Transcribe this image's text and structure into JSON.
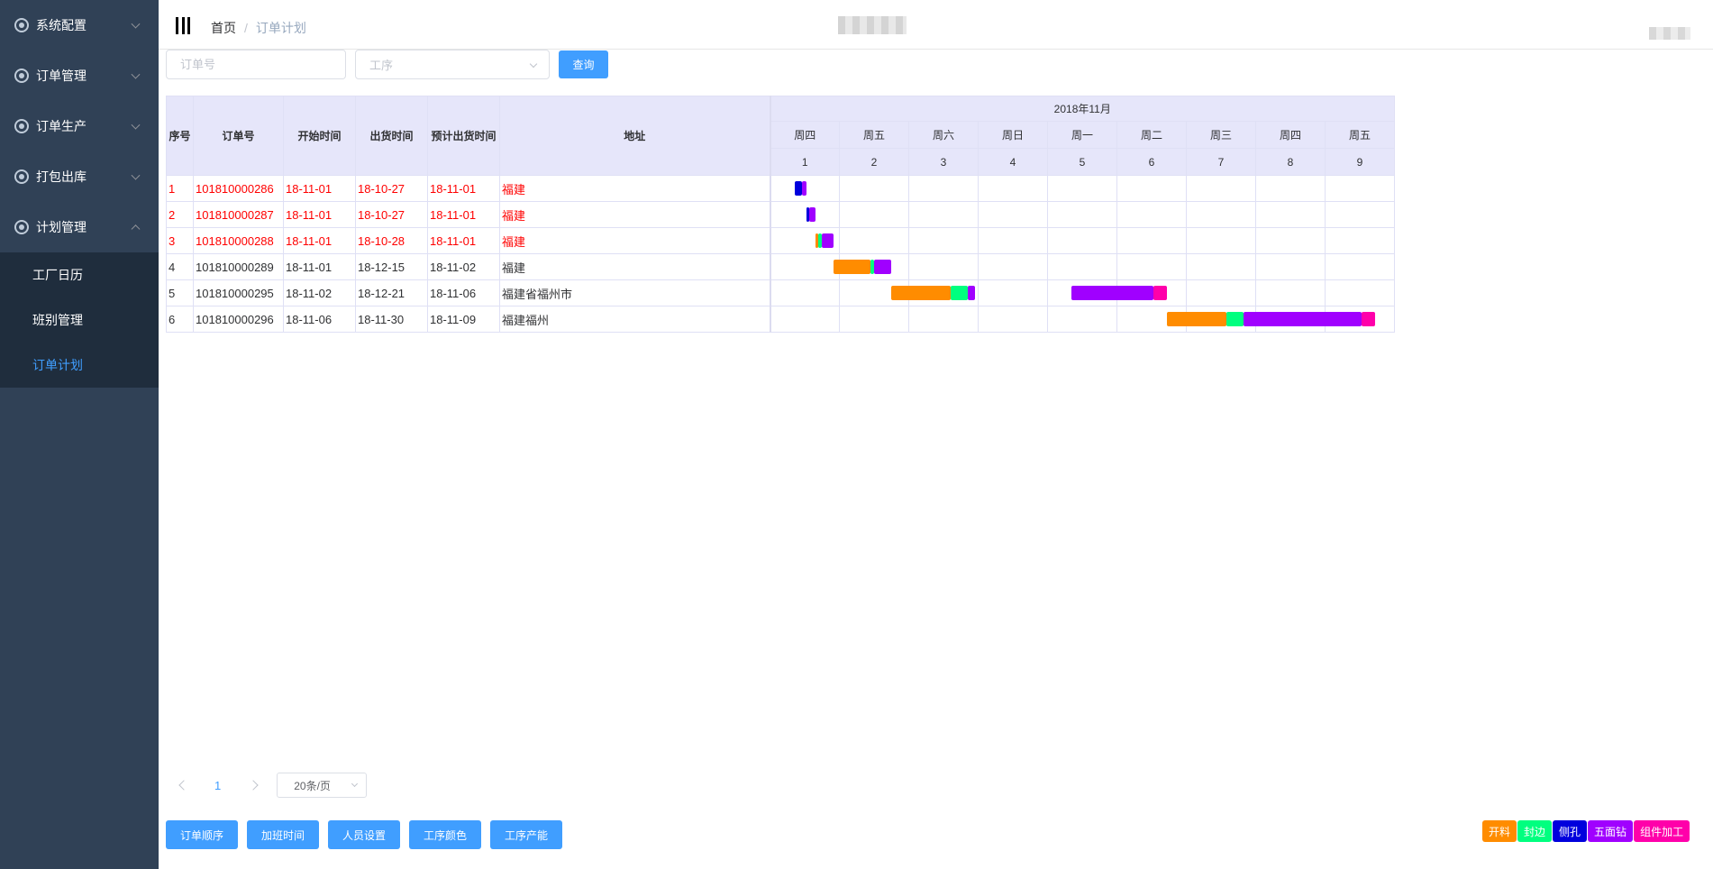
{
  "sidebar": {
    "menus": [
      {
        "label": "系统配置",
        "icon": "gear-icon",
        "expanded": false
      },
      {
        "label": "订单管理",
        "icon": "gear-icon",
        "expanded": false
      },
      {
        "label": "订单生产",
        "icon": "gear-icon",
        "expanded": false
      },
      {
        "label": "打包出库",
        "icon": "gear-icon",
        "expanded": false
      },
      {
        "label": "计划管理",
        "icon": "gear-icon",
        "expanded": true
      }
    ],
    "submenu": [
      {
        "label": "工厂日历",
        "active": false
      },
      {
        "label": "班别管理",
        "active": false
      },
      {
        "label": "订单计划",
        "active": true
      }
    ]
  },
  "header": {
    "breadcrumb": {
      "home": "首页",
      "separator": "/",
      "current": "订单计划"
    }
  },
  "filters": {
    "order_no_placeholder": "订单号",
    "process_placeholder": "工序",
    "query_label": "查询"
  },
  "table": {
    "columns": [
      "序号",
      "订单号",
      "开始时间",
      "出货时间",
      "预计出货时间",
      "地址"
    ],
    "month": "2018年11月",
    "weekdays": [
      "周四",
      "周五",
      "周六",
      "周日",
      "周一",
      "周二",
      "周三",
      "周四",
      "周五"
    ],
    "days": [
      "1",
      "2",
      "3",
      "4",
      "5",
      "6",
      "7",
      "8",
      "9"
    ],
    "rows": [
      {
        "cells": [
          "1",
          "101810000286",
          "18-11-01",
          "18-10-27",
          "18-11-01",
          "福建"
        ],
        "late": true,
        "segments": [
          {
            "start": 0.36,
            "end": 0.46,
            "color": "#0000dd"
          },
          {
            "start": 0.46,
            "end": 0.52,
            "color": "#a000ff"
          }
        ]
      },
      {
        "cells": [
          "2",
          "101810000287",
          "18-11-01",
          "18-10-27",
          "18-11-01",
          "福建"
        ],
        "late": true,
        "segments": [
          {
            "start": 0.52,
            "end": 0.57,
            "color": "#0000dd"
          },
          {
            "start": 0.57,
            "end": 0.66,
            "color": "#a000ff"
          }
        ]
      },
      {
        "cells": [
          "3",
          "101810000288",
          "18-11-01",
          "18-10-28",
          "18-11-01",
          "福建"
        ],
        "late": true,
        "segments": [
          {
            "start": 0.66,
            "end": 0.7,
            "color": "#ff8c00"
          },
          {
            "start": 0.7,
            "end": 0.75,
            "color": "#00ff7f"
          },
          {
            "start": 0.75,
            "end": 0.92,
            "color": "#a000ff"
          }
        ]
      },
      {
        "cells": [
          "4",
          "101810000289",
          "18-11-01",
          "18-12-15",
          "18-11-02",
          "福建"
        ],
        "late": false,
        "segments": [
          {
            "start": 0.92,
            "end": 1.45,
            "color": "#ff8c00"
          },
          {
            "start": 1.45,
            "end": 1.5,
            "color": "#00ff7f"
          },
          {
            "start": 1.5,
            "end": 1.75,
            "color": "#a000ff"
          }
        ]
      },
      {
        "cells": [
          "5",
          "101810000295",
          "18-11-02",
          "18-12-21",
          "18-11-06",
          "福建省福州市"
        ],
        "late": false,
        "segments": [
          {
            "start": 1.75,
            "end": 2.6,
            "color": "#ff8c00"
          },
          {
            "start": 2.6,
            "end": 2.85,
            "color": "#00ff7f"
          },
          {
            "start": 2.85,
            "end": 2.95,
            "color": "#a000ff"
          },
          {
            "start": 4.35,
            "end": 5.52,
            "color": "#a000ff"
          },
          {
            "start": 5.52,
            "end": 5.72,
            "color": "#ff00aa"
          }
        ]
      },
      {
        "cells": [
          "6",
          "101810000296",
          "18-11-06",
          "18-11-30",
          "18-11-09",
          "福建福州"
        ],
        "late": false,
        "segments": [
          {
            "start": 5.72,
            "end": 6.58,
            "color": "#ff8c00"
          },
          {
            "start": 6.58,
            "end": 6.82,
            "color": "#00ff7f"
          },
          {
            "start": 6.82,
            "end": 8.52,
            "color": "#a000ff"
          },
          {
            "start": 8.52,
            "end": 8.72,
            "color": "#ff00aa"
          }
        ]
      }
    ]
  },
  "pagination": {
    "current": "1",
    "page_size": "20条/页"
  },
  "actions": [
    "订单顺序",
    "加班时间",
    "人员设置",
    "工序颜色",
    "工序产能"
  ],
  "legend": [
    {
      "label": "开料",
      "color": "#ff8c00"
    },
    {
      "label": "封边",
      "color": "#00ff7f"
    },
    {
      "label": "侧孔",
      "color": "#0000dd"
    },
    {
      "label": "五面钻",
      "color": "#a000ff"
    },
    {
      "label": "组件加工",
      "color": "#ff00aa"
    }
  ],
  "colors": {
    "sidebar": "#304156",
    "submenu": "#1f2d3d",
    "accent": "#409eff",
    "header_bg": "#e6e6fa",
    "late": "#ff0000"
  }
}
